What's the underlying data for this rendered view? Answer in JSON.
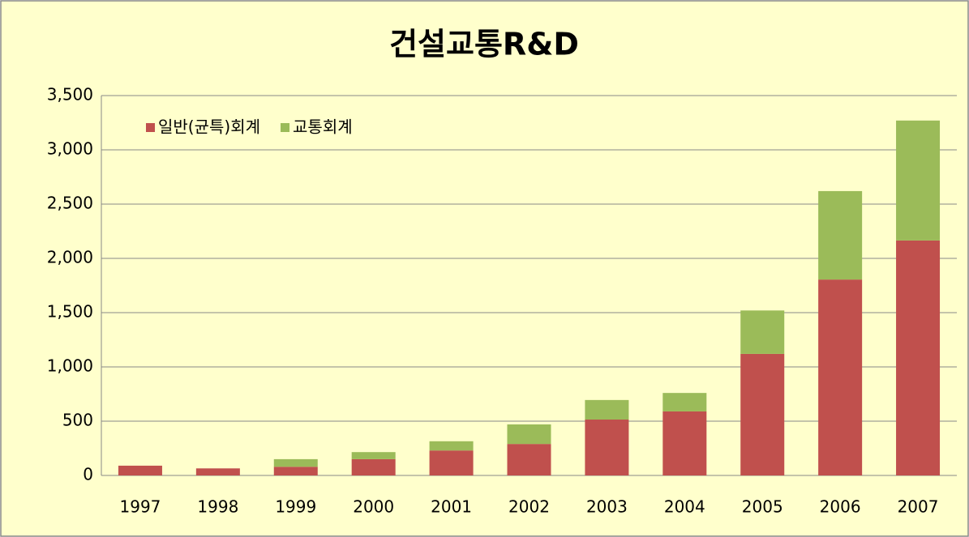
{
  "chart_data": {
    "type": "stacked-bar",
    "title": "건설교통R&D",
    "categories": [
      "1997",
      "1998",
      "1999",
      "2000",
      "2001",
      "2002",
      "2003",
      "2004",
      "2005",
      "2006",
      "2007"
    ],
    "series": [
      {
        "name": "일반(균특)회계",
        "color": "#c0504d",
        "values": [
          90,
          65,
          80,
          150,
          230,
          290,
          515,
          590,
          1120,
          1805,
          2165
        ]
      },
      {
        "name": "교통회계",
        "color": "#9bbb59",
        "values": [
          0,
          0,
          70,
          65,
          85,
          180,
          180,
          170,
          400,
          815,
          1105
        ]
      }
    ],
    "ylim": [
      0,
      3500
    ],
    "yticks": [
      0,
      500,
      {
        "value": 1000,
        "label": "1,000"
      },
      {
        "value": 1500,
        "label": "1,500"
      },
      {
        "value": 2000,
        "label": "2,000"
      },
      {
        "value": 2500,
        "label": "2,500"
      },
      {
        "value": 3000,
        "label": "3,000"
      },
      {
        "value": 3500,
        "label": "3,500"
      }
    ],
    "grid": true,
    "legend": "top-left"
  }
}
